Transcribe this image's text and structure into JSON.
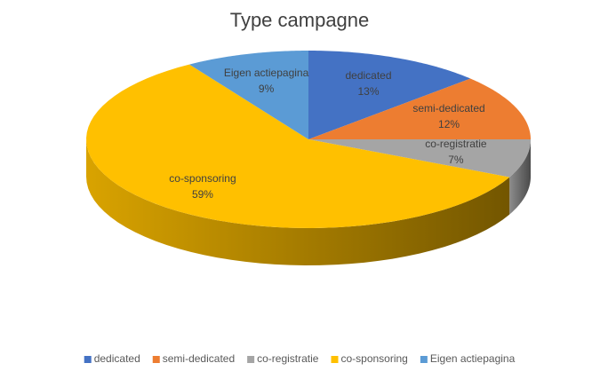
{
  "chart_data": {
    "type": "pie3d",
    "title": "Type campagne",
    "categories": [
      "dedicated",
      "semi-dedicated",
      "co-registratie",
      "co-sponsoring",
      "Eigen actiepagina"
    ],
    "values": [
      13,
      12,
      7,
      59,
      9
    ],
    "value_labels": [
      "13%",
      "12%",
      "7%",
      "59%",
      "9%"
    ],
    "colors": [
      "#4472c4",
      "#ed7d31",
      "#a5a5a5",
      "#ffc000",
      "#5b9bd5"
    ],
    "legend": "bottom"
  }
}
